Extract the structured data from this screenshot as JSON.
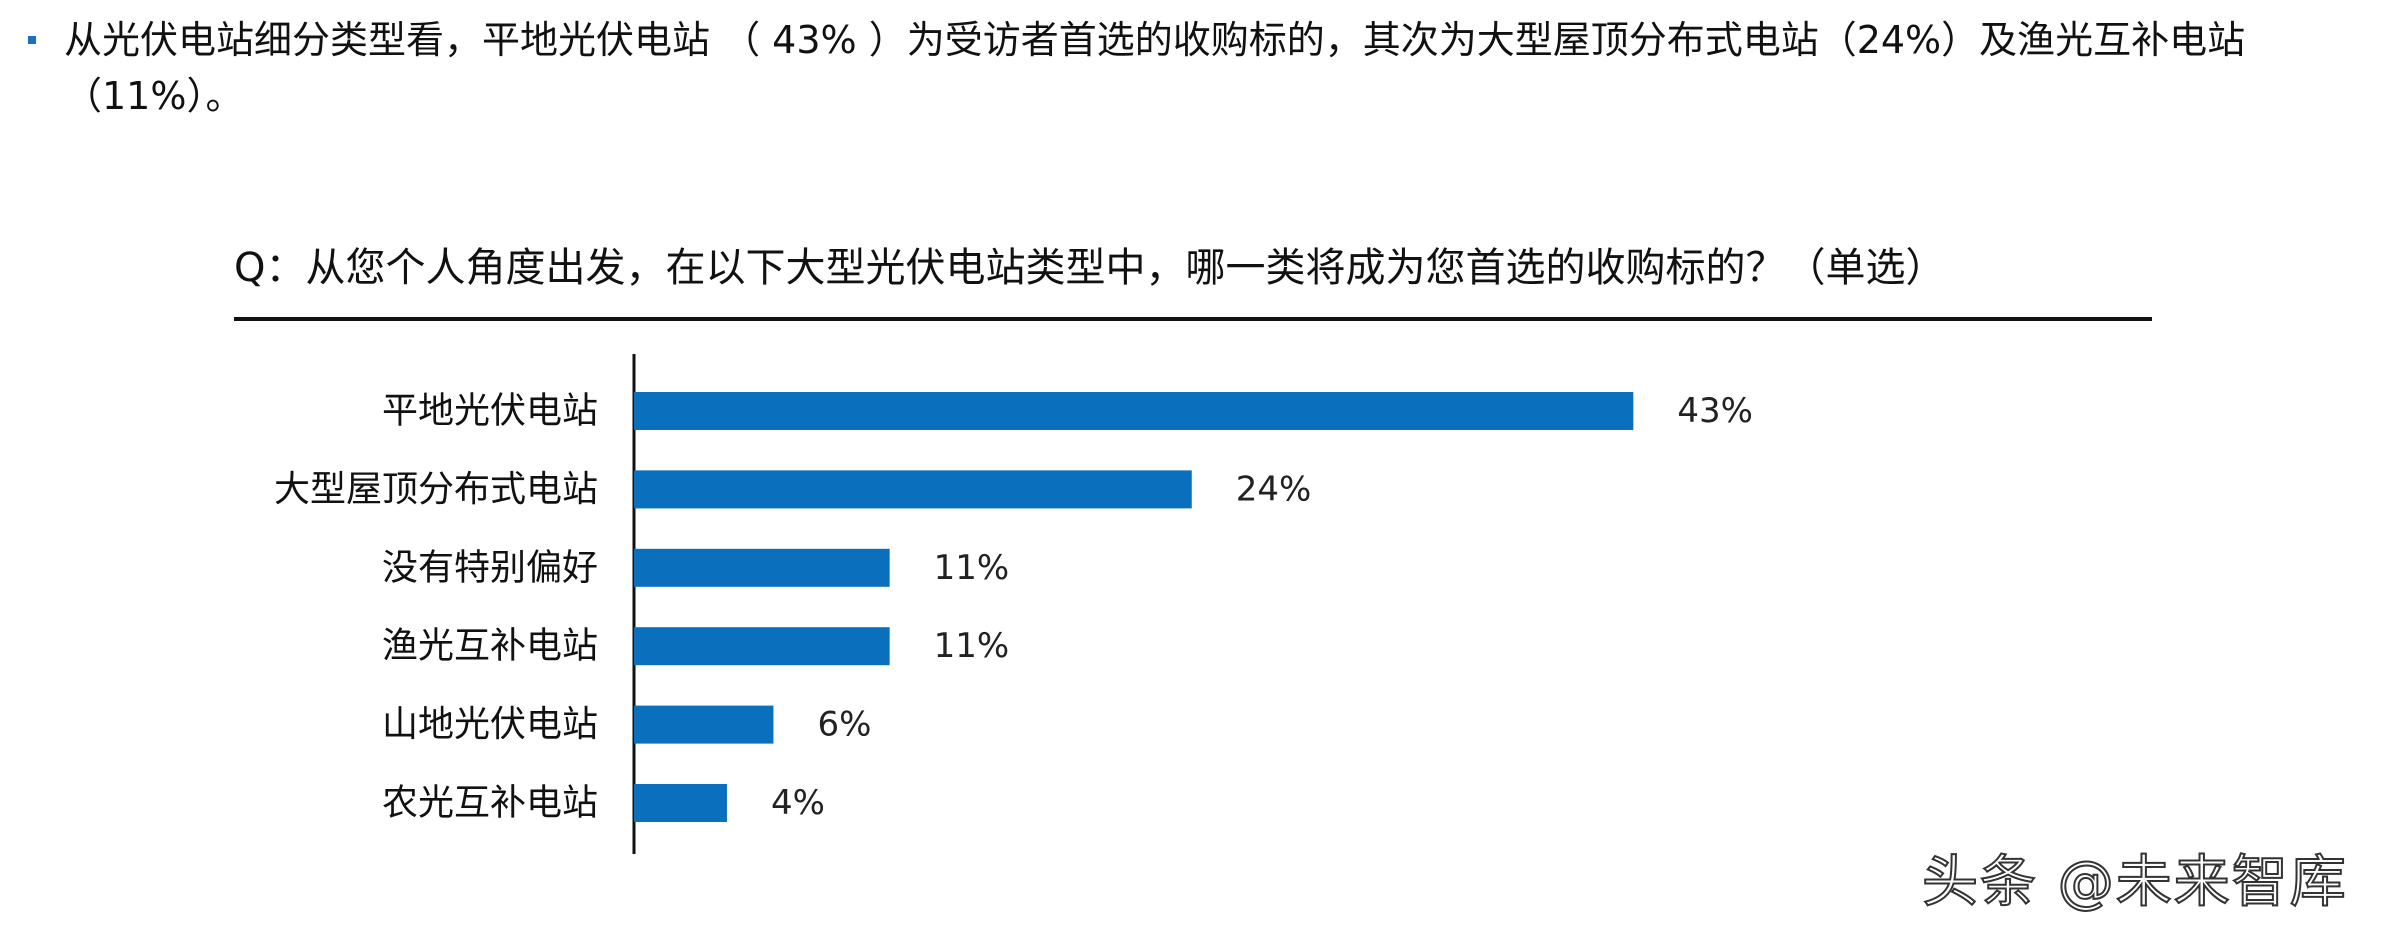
{
  "summary": {
    "text": "从光伏电站细分类型看，平地光伏电站 （ 43% ）为受访者首选的收购标的，其次为大型屋顶分布式电站（24%）及渔光互补电站（11%）。"
  },
  "question": {
    "text": "Q：从您个人角度出发，在以下大型光伏电站类型中，哪一类将成为您首选的收购标的？（单选）"
  },
  "watermark": {
    "text": "头条 @未来智库"
  },
  "chart_data": {
    "type": "bar",
    "orientation": "horizontal",
    "categories": [
      "平地光伏电站",
      "大型屋顶分布式电站",
      "没有特别偏好",
      "渔光互补电站",
      "山地光伏电站",
      "农光互补电站"
    ],
    "values": [
      43,
      24,
      11,
      11,
      6,
      4
    ],
    "value_labels": [
      "43%",
      "24%",
      "11%",
      "11%",
      "6%",
      "4%"
    ],
    "unit": "%",
    "bar_color": "#0a6fbd",
    "grid": false,
    "legend": "none"
  }
}
